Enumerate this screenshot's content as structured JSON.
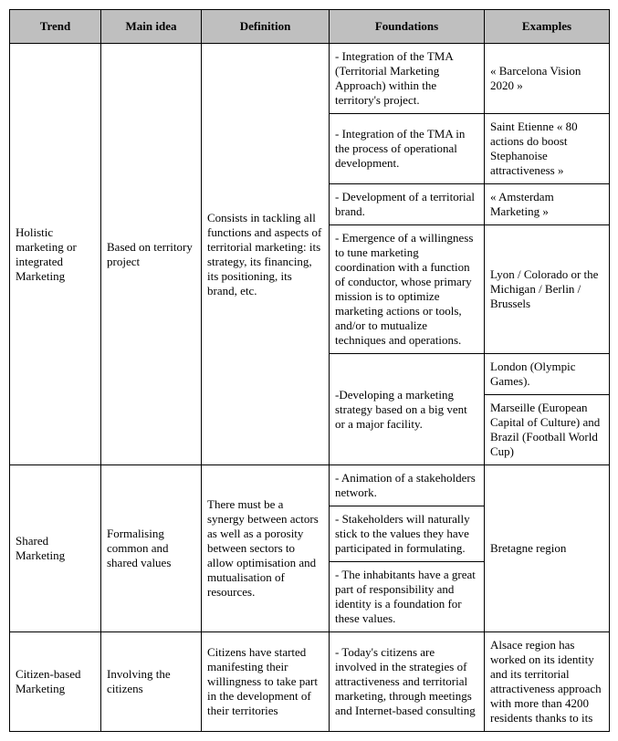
{
  "columns": [
    "Trend",
    "Main idea",
    "Definition",
    "Foundations",
    "Examples"
  ],
  "rows": {
    "holistic": {
      "trend": "Holistic marketing or integrated Marketing",
      "idea": "Based on territory project",
      "def": "Consists in tackling all functions and aspects of territorial marketing: its strategy, its financing, its positioning, its brand, etc.",
      "f1": "- Integration of the TMA (Territorial Marketing Approach) within the territory's project.",
      "e1": "« Barcelona Vision 2020 »",
      "f2": "- Integration of the TMA in the process of operational development.",
      "e2": "Saint Etienne « 80 actions do boost Stephanoise attractiveness »",
      "f3": "- Development of a territorial brand.",
      "e3": "« Amsterdam Marketing »",
      "f4": "- Emergence of a willingness to tune marketing coordination with a function of conductor, whose primary mission is to optimize marketing actions or tools, and/or to mutualize techniques and operations.",
      "e4": "Lyon / Colorado or the Michigan / Berlin / Brussels",
      "f5": "-Developing a marketing strategy based on a big vent or a major facility.",
      "e5": "London (Olympic Games).",
      "e6": "Marseille (European Capital of Culture) and Brazil (Football World Cup)"
    },
    "shared": {
      "trend": "Shared Marketing",
      "idea": "Formalising common and shared values",
      "def": "There must be a synergy between actors as well as a porosity between sectors to allow optimisation and mutualisation of resources.",
      "f1": "- Animation of a stakeholders network.",
      "f2": "- Stakeholders will naturally stick to the values they have participated in formulating.",
      "f3": "- The inhabitants have a great part of responsibility and identity is a foundation for these values.",
      "e1": "Bretagne region"
    },
    "citizen": {
      "trend": "Citizen-based Marketing",
      "idea": "Involving the citizens",
      "def": "Citizens have started manifesting their willingness to take part in the development of their territories",
      "f1": "- Today's citizens are involved in the strategies of attractiveness and territorial marketing, through meetings and Internet-based consulting",
      "e1": "Alsace region has worked on its identity and its territorial attractiveness approach with more than 4200 residents thanks to its"
    }
  }
}
